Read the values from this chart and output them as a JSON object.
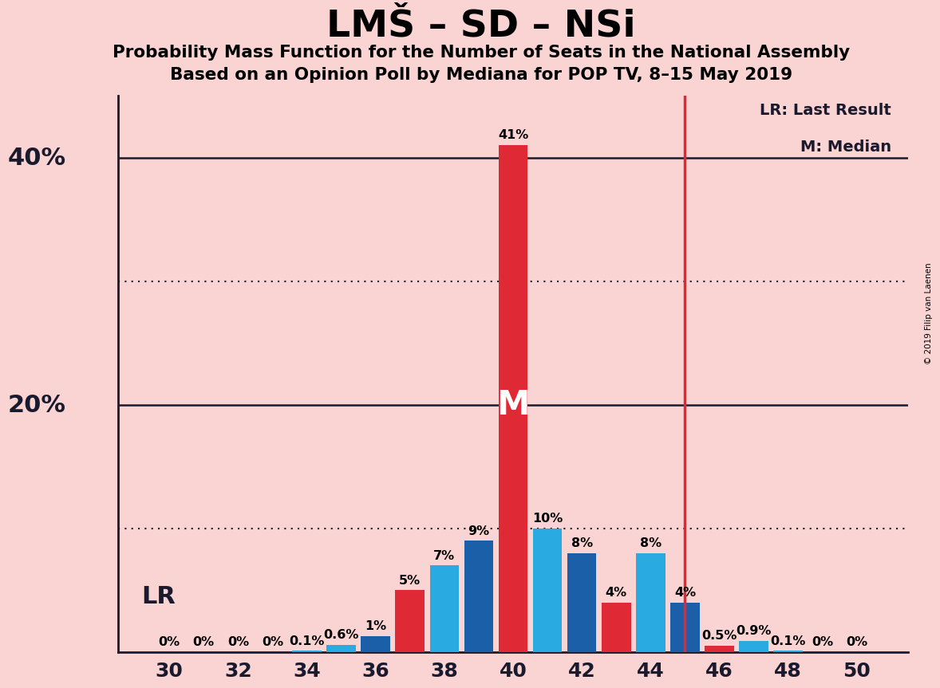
{
  "title": "LMŠ – SD – NSi",
  "subtitle1": "Probability Mass Function for the Number of Seats in the National Assembly",
  "subtitle2": "Based on an Opinion Poll by Mediana for POP TV, 8–15 May 2019",
  "copyright": "© 2019 Filip van Laenen",
  "background_color": "#fad3d3",
  "red_color": "#df2935",
  "blue_color": "#1a5fa8",
  "cyan_color": "#29abe2",
  "bar_data": {
    "34": [
      0.1,
      "cyan"
    ],
    "35": [
      0.6,
      "cyan"
    ],
    "36": [
      1.3,
      "blue"
    ],
    "37": [
      5.0,
      "red"
    ],
    "38": [
      7.0,
      "cyan"
    ],
    "39": [
      9.0,
      "blue"
    ],
    "40": [
      41.0,
      "red"
    ],
    "41": [
      10.0,
      "cyan"
    ],
    "42": [
      8.0,
      "blue"
    ],
    "43": [
      4.0,
      "red"
    ],
    "44": [
      8.0,
      "cyan"
    ],
    "45": [
      4.0,
      "blue"
    ],
    "46": [
      0.5,
      "red"
    ],
    "47": [
      0.9,
      "cyan"
    ],
    "48": [
      0.1,
      "cyan"
    ]
  },
  "zero_label_seats": [
    30,
    31,
    32,
    33,
    49,
    50
  ],
  "last_result_x": 45,
  "median_x": 40,
  "median_label": "M",
  "lr_label": "LR",
  "xlim": [
    28.5,
    51.5
  ],
  "ylim": [
    0,
    45
  ],
  "ytick_solid": [
    20,
    40
  ],
  "ytick_dotted": [
    10,
    30
  ],
  "ytick_labels": [
    [
      40,
      "40%"
    ],
    [
      20,
      "20%"
    ]
  ],
  "xticks": [
    30,
    32,
    34,
    36,
    38,
    40,
    42,
    44,
    46,
    48,
    50
  ],
  "bar_width": 0.85,
  "legend_lr": "LR: Last Result",
  "legend_m": "M: Median"
}
